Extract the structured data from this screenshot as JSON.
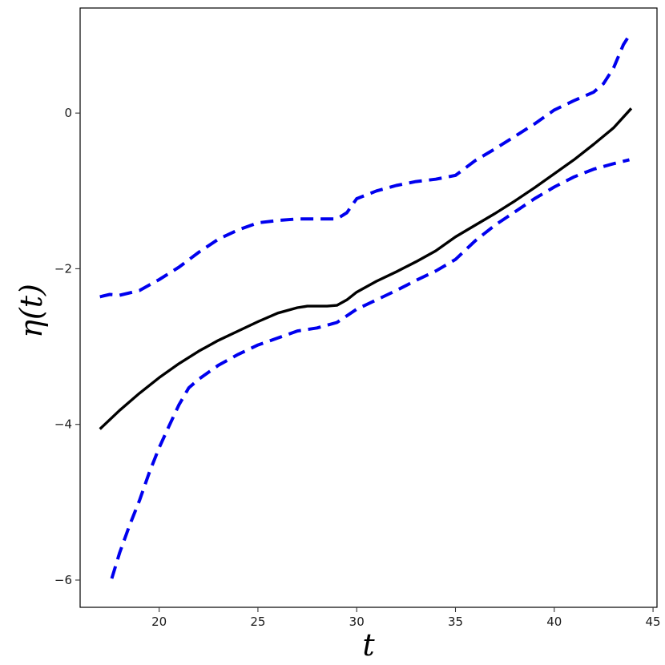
{
  "chart_data": {
    "type": "line",
    "xlabel": "t",
    "ylabel": "η(t)",
    "xlim": [
      16.0,
      45.2
    ],
    "ylim": [
      -6.35,
      1.35
    ],
    "x_ticks": [
      20,
      25,
      30,
      35,
      40,
      45
    ],
    "y_ticks": [
      0,
      -2,
      -4,
      -6
    ],
    "x_tick_labels": [
      "20",
      "25",
      "30",
      "35",
      "40",
      "45"
    ],
    "y_tick_labels": [
      "0",
      "−2",
      "−4",
      "−6"
    ],
    "grid": false,
    "series": [
      {
        "role": "estimate",
        "color": "#000000",
        "style": "solid",
        "x": [
          17.0,
          18.0,
          19.0,
          20.0,
          21.0,
          22.0,
          23.0,
          24.0,
          25.0,
          26.0,
          27.0,
          27.5,
          28.0,
          28.5,
          29.0,
          29.5,
          30.0,
          31.0,
          32.0,
          33.0,
          34.0,
          35.0,
          36.0,
          37.0,
          38.0,
          39.0,
          40.0,
          41.0,
          42.0,
          43.0,
          43.9
        ],
        "y": [
          -4.06,
          -3.82,
          -3.6,
          -3.4,
          -3.22,
          -3.06,
          -2.92,
          -2.8,
          -2.68,
          -2.57,
          -2.5,
          -2.48,
          -2.48,
          -2.48,
          -2.47,
          -2.4,
          -2.3,
          -2.16,
          -2.04,
          -1.91,
          -1.77,
          -1.59,
          -1.44,
          -1.29,
          -1.13,
          -0.96,
          -0.78,
          -0.6,
          -0.4,
          -0.19,
          0.06
        ]
      },
      {
        "role": "upper band",
        "color": "#0000ee",
        "style": "dashed",
        "x": [
          17.0,
          17.5,
          18.0,
          19.0,
          20.0,
          21.0,
          22.0,
          23.0,
          24.0,
          25.0,
          26.0,
          27.0,
          28.0,
          29.0,
          29.5,
          30.0,
          31.0,
          32.0,
          33.0,
          34.0,
          35.0,
          36.0,
          37.0,
          38.0,
          39.0,
          40.0,
          41.0,
          42.0,
          42.5,
          43.0,
          43.5,
          43.8
        ],
        "y": [
          -2.36,
          -2.33,
          -2.34,
          -2.28,
          -2.14,
          -1.98,
          -1.79,
          -1.62,
          -1.5,
          -1.41,
          -1.38,
          -1.36,
          -1.36,
          -1.36,
          -1.28,
          -1.1,
          -1.0,
          -0.93,
          -0.88,
          -0.85,
          -0.8,
          -0.61,
          -0.46,
          -0.3,
          -0.14,
          0.04,
          0.16,
          0.27,
          0.38,
          0.58,
          0.88,
          1.0
        ]
      },
      {
        "role": "lower band",
        "color": "#0000ee",
        "style": "dashed",
        "x": [
          17.6,
          18.0,
          18.5,
          19.0,
          19.5,
          20.0,
          20.5,
          21.0,
          21.5,
          22.0,
          23.0,
          24.0,
          25.0,
          26.0,
          27.0,
          28.0,
          29.0,
          30.0,
          31.0,
          32.0,
          33.0,
          34.0,
          35.0,
          36.0,
          37.0,
          38.0,
          39.0,
          40.0,
          41.0,
          42.0,
          43.0,
          43.8
        ],
        "y": [
          -5.98,
          -5.65,
          -5.3,
          -4.98,
          -4.62,
          -4.3,
          -4.02,
          -3.75,
          -3.53,
          -3.42,
          -3.24,
          -3.1,
          -2.98,
          -2.89,
          -2.8,
          -2.76,
          -2.69,
          -2.52,
          -2.4,
          -2.28,
          -2.15,
          -2.03,
          -1.88,
          -1.64,
          -1.44,
          -1.27,
          -1.1,
          -0.95,
          -0.82,
          -0.72,
          -0.65,
          -0.6
        ]
      }
    ]
  }
}
